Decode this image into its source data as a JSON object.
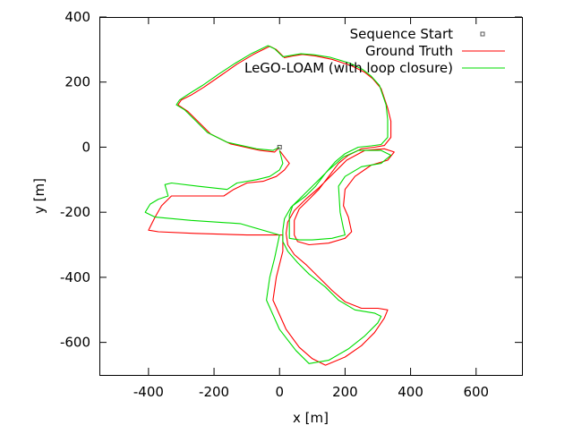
{
  "chart_data": {
    "type": "line",
    "title": "",
    "xlabel": "x [m]",
    "ylabel": "y [m]",
    "xlim": [
      -550,
      740
    ],
    "ylim": [
      -700,
      400
    ],
    "x_ticks": [
      -400,
      -200,
      0,
      200,
      400,
      600
    ],
    "x_tick_labels": [
      "-400",
      "-200",
      "0",
      "200",
      "400",
      "600"
    ],
    "y_ticks": [
      400,
      200,
      0,
      -200,
      -400,
      -600
    ],
    "y_tick_labels": [
      "400",
      "200",
      "0",
      "-200",
      "-400",
      "-600"
    ],
    "grid": false,
    "legend_position": "top-right",
    "legend": [
      {
        "label": "Sequence Start",
        "type": "point"
      },
      {
        "label": "Ground Truth",
        "type": "line"
      },
      {
        "label": "LeGO-LOAM (with loop closure)",
        "type": "line"
      }
    ],
    "start_point": {
      "x": 0,
      "y": 0
    },
    "series": [
      {
        "name": "Ground Truth",
        "color": "#ff0000",
        "points": [
          [
            0,
            0
          ],
          [
            -15,
            -15
          ],
          [
            -60,
            -10
          ],
          [
            -150,
            10
          ],
          [
            -210,
            40
          ],
          [
            -250,
            80
          ],
          [
            -280,
            110
          ],
          [
            -310,
            130
          ],
          [
            -300,
            145
          ],
          [
            -270,
            160
          ],
          [
            -230,
            185
          ],
          [
            -180,
            220
          ],
          [
            -130,
            255
          ],
          [
            -80,
            285
          ],
          [
            -30,
            310
          ],
          [
            -10,
            300
          ],
          [
            15,
            275
          ],
          [
            40,
            280
          ],
          [
            70,
            285
          ],
          [
            110,
            280
          ],
          [
            160,
            270
          ],
          [
            220,
            250
          ],
          [
            260,
            230
          ],
          [
            285,
            210
          ],
          [
            310,
            180
          ],
          [
            330,
            120
          ],
          [
            340,
            80
          ],
          [
            340,
            30
          ],
          [
            320,
            5
          ],
          [
            290,
            0
          ],
          [
            250,
            -5
          ],
          [
            210,
            -25
          ],
          [
            180,
            -50
          ],
          [
            150,
            -90
          ],
          [
            120,
            -130
          ],
          [
            90,
            -160
          ],
          [
            60,
            -190
          ],
          [
            45,
            -225
          ],
          [
            45,
            -270
          ],
          [
            55,
            -290
          ],
          [
            90,
            -300
          ],
          [
            150,
            -295
          ],
          [
            200,
            -280
          ],
          [
            220,
            -260
          ],
          [
            210,
            -215
          ],
          [
            195,
            -180
          ],
          [
            200,
            -130
          ],
          [
            230,
            -90
          ],
          [
            280,
            -55
          ],
          [
            330,
            -40
          ],
          [
            350,
            -15
          ],
          [
            320,
            -5
          ],
          [
            260,
            -10
          ],
          [
            205,
            -40
          ],
          [
            160,
            -85
          ],
          [
            120,
            -125
          ],
          [
            80,
            -160
          ],
          [
            45,
            -195
          ],
          [
            25,
            -230
          ],
          [
            20,
            -265
          ],
          [
            25,
            -300
          ],
          [
            45,
            -330
          ],
          [
            80,
            -360
          ],
          [
            120,
            -400
          ],
          [
            160,
            -440
          ],
          [
            200,
            -475
          ],
          [
            250,
            -495
          ],
          [
            300,
            -495
          ],
          [
            330,
            -500
          ],
          [
            320,
            -525
          ],
          [
            290,
            -570
          ],
          [
            250,
            -610
          ],
          [
            200,
            -645
          ],
          [
            140,
            -670
          ],
          [
            100,
            -650
          ],
          [
            60,
            -615
          ],
          [
            20,
            -560
          ],
          [
            -20,
            -470
          ],
          [
            -10,
            -400
          ],
          [
            10,
            -320
          ],
          [
            10,
            -270
          ],
          [
            -100,
            -270
          ],
          [
            -260,
            -265
          ],
          [
            -370,
            -260
          ],
          [
            -400,
            -255
          ],
          [
            -380,
            -215
          ],
          [
            -360,
            -180
          ],
          [
            -330,
            -150
          ],
          [
            -250,
            -150
          ],
          [
            -170,
            -150
          ],
          [
            -140,
            -130
          ],
          [
            -100,
            -110
          ],
          [
            -50,
            -105
          ],
          [
            -10,
            -90
          ],
          [
            15,
            -70
          ],
          [
            30,
            -50
          ],
          [
            15,
            -30
          ],
          [
            0,
            -10
          ]
        ]
      },
      {
        "name": "LeGO-LOAM (with loop closure)",
        "color": "#00dd00",
        "points": [
          [
            0,
            0
          ],
          [
            -20,
            -10
          ],
          [
            -70,
            -5
          ],
          [
            -160,
            15
          ],
          [
            -220,
            45
          ],
          [
            -260,
            85
          ],
          [
            -290,
            115
          ],
          [
            -315,
            130
          ],
          [
            -305,
            145
          ],
          [
            -275,
            165
          ],
          [
            -235,
            190
          ],
          [
            -185,
            225
          ],
          [
            -135,
            258
          ],
          [
            -85,
            288
          ],
          [
            -35,
            312
          ],
          [
            -15,
            302
          ],
          [
            10,
            278
          ],
          [
            35,
            282
          ],
          [
            65,
            287
          ],
          [
            105,
            284
          ],
          [
            155,
            276
          ],
          [
            215,
            258
          ],
          [
            255,
            238
          ],
          [
            280,
            218
          ],
          [
            305,
            190
          ],
          [
            325,
            130
          ],
          [
            330,
            85
          ],
          [
            330,
            30
          ],
          [
            310,
            8
          ],
          [
            280,
            4
          ],
          [
            240,
            0
          ],
          [
            200,
            -20
          ],
          [
            170,
            -45
          ],
          [
            140,
            -80
          ],
          [
            110,
            -120
          ],
          [
            80,
            -150
          ],
          [
            40,
            -180
          ],
          [
            30,
            -210
          ],
          [
            30,
            -250
          ],
          [
            30,
            -280
          ],
          [
            60,
            -285
          ],
          [
            100,
            -285
          ],
          [
            160,
            -280
          ],
          [
            200,
            -270
          ],
          [
            195,
            -250
          ],
          [
            185,
            -200
          ],
          [
            180,
            -120
          ],
          [
            200,
            -90
          ],
          [
            250,
            -60
          ],
          [
            310,
            -50
          ],
          [
            340,
            -25
          ],
          [
            310,
            -10
          ],
          [
            240,
            -10
          ],
          [
            195,
            -30
          ],
          [
            150,
            -70
          ],
          [
            110,
            -110
          ],
          [
            70,
            -150
          ],
          [
            35,
            -185
          ],
          [
            15,
            -220
          ],
          [
            10,
            -255
          ],
          [
            10,
            -290
          ],
          [
            25,
            -320
          ],
          [
            55,
            -355
          ],
          [
            90,
            -390
          ],
          [
            140,
            -430
          ],
          [
            180,
            -470
          ],
          [
            230,
            -500
          ],
          [
            290,
            -510
          ],
          [
            310,
            -520
          ],
          [
            300,
            -540
          ],
          [
            260,
            -580
          ],
          [
            210,
            -620
          ],
          [
            150,
            -655
          ],
          [
            90,
            -665
          ],
          [
            50,
            -625
          ],
          [
            0,
            -560
          ],
          [
            -40,
            -470
          ],
          [
            -30,
            -400
          ],
          [
            -15,
            -340
          ],
          [
            0,
            -270
          ],
          [
            -120,
            -235
          ],
          [
            -270,
            -225
          ],
          [
            -380,
            -215
          ],
          [
            -410,
            -200
          ],
          [
            -395,
            -175
          ],
          [
            -370,
            -160
          ],
          [
            -340,
            -150
          ],
          [
            -350,
            -115
          ],
          [
            -330,
            -110
          ],
          [
            -250,
            -120
          ],
          [
            -160,
            -130
          ],
          [
            -130,
            -110
          ],
          [
            -70,
            -100
          ],
          [
            -30,
            -90
          ],
          [
            0,
            -70
          ],
          [
            10,
            -50
          ],
          [
            5,
            -30
          ],
          [
            0,
            -10
          ]
        ]
      }
    ]
  }
}
